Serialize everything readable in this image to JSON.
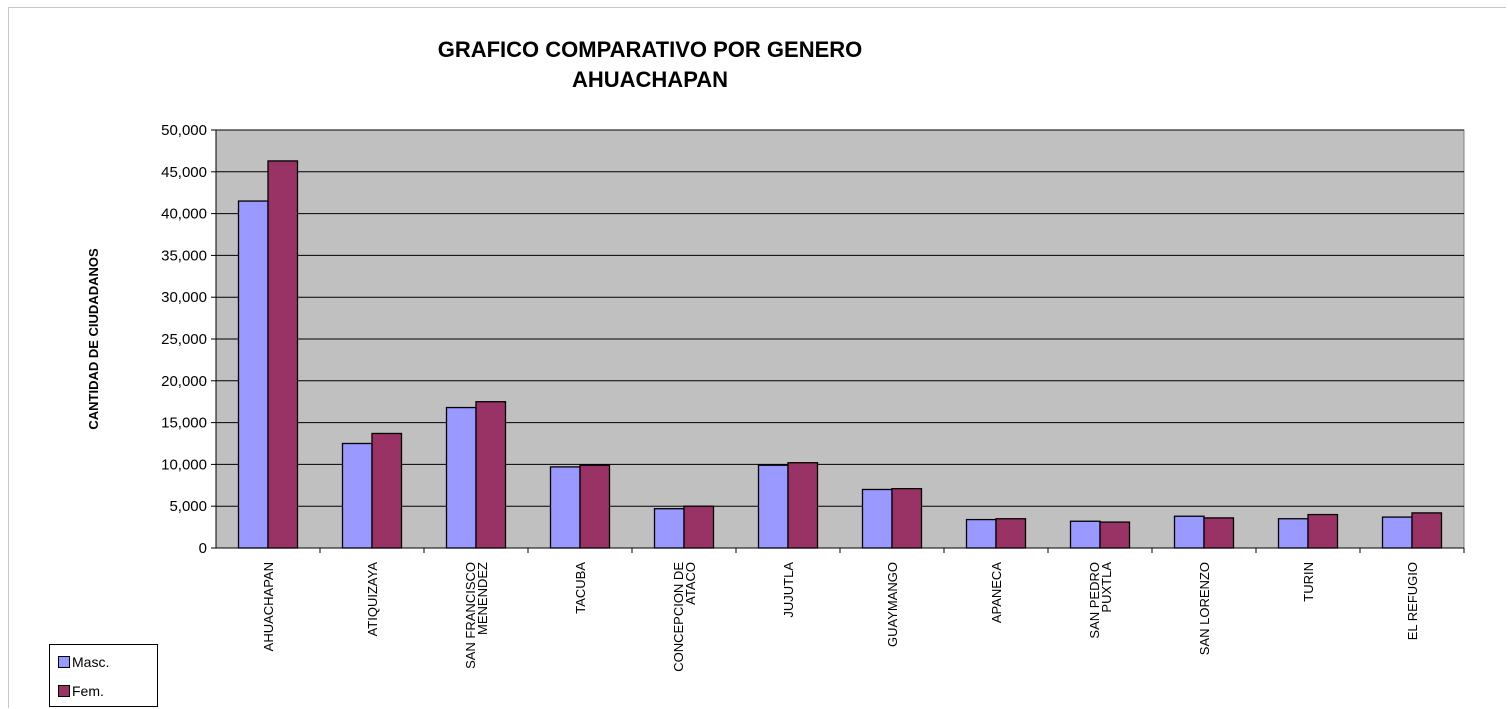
{
  "chart_data": {
    "type": "bar",
    "title": "GRAFICO COMPARATIVO POR GENERO",
    "subtitle": "AHUACHAPAN",
    "xlabel": "",
    "ylabel": "CANTIDAD DE CIUDADANOS",
    "ylim": [
      0,
      50000
    ],
    "yticks": [
      "0",
      "5,000",
      "10,000",
      "15,000",
      "20,000",
      "25,000",
      "30,000",
      "35,000",
      "40,000",
      "45,000",
      "50,000"
    ],
    "categories": [
      [
        "AHUACHAPAN"
      ],
      [
        "ATIQUIZAYA"
      ],
      [
        "SAN FRANCISCO",
        "MENENDEZ"
      ],
      [
        "TACUBA"
      ],
      [
        "CONCEPCION DE",
        "ATACO"
      ],
      [
        "JUJUTLA"
      ],
      [
        "GUAYMANGO"
      ],
      [
        "APANECA"
      ],
      [
        "SAN PEDRO",
        "PUXTLA"
      ],
      [
        "SAN LORENZO"
      ],
      [
        "TURIN"
      ],
      [
        "EL REFUGIO"
      ]
    ],
    "series": [
      {
        "name": "Masc.",
        "color": "#9999ff",
        "values": [
          41500,
          12500,
          16800,
          9700,
          4700,
          9900,
          7000,
          3400,
          3200,
          3800,
          3500,
          3700
        ]
      },
      {
        "name": "Fem.",
        "color": "#993366",
        "values": [
          46300,
          13700,
          17500,
          9900,
          5000,
          10200,
          7100,
          3500,
          3100,
          3600,
          4000,
          4200
        ]
      }
    ],
    "plot_background": "#c0c0c0",
    "grid": true,
    "legend_position": "bottom-left"
  }
}
